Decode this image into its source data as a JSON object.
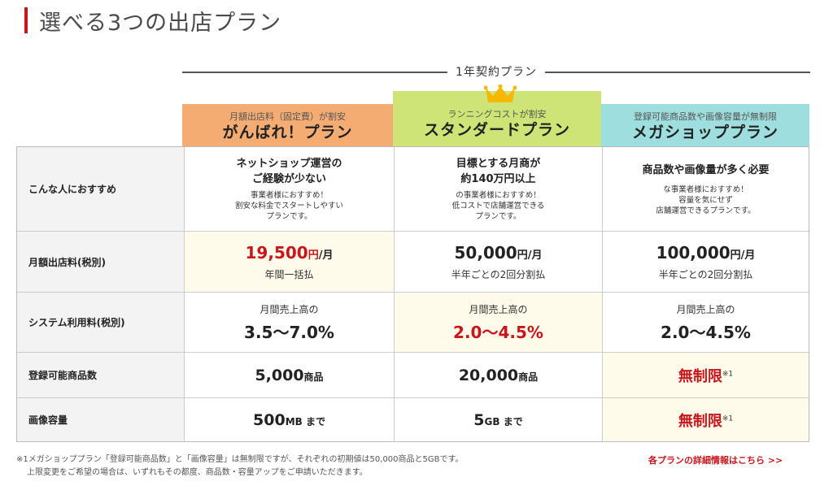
{
  "page": {
    "title": "選べる3つの出店プラン",
    "accent_color": "#c8161d"
  },
  "contract_label": "1年契約プラン",
  "crown_icon": "crown-icon",
  "plans": [
    {
      "sub": "月額出店料（固定費）が割安",
      "name": "がんばれ！プラン",
      "color": "#f5ac72"
    },
    {
      "sub": "ランニングコストが割安",
      "name": "スタンダードプラン",
      "color": "#cfe476"
    },
    {
      "sub": "登録可能商品数や画像容量が無制限",
      "name": "メガショッププラン",
      "color": "#9fdede"
    }
  ],
  "rows": {
    "recommend": {
      "label": "こんな人におすすめ",
      "cells": [
        {
          "title1": "ネットショップ運営の",
          "title2": "ご経験が少ない",
          "text1": "事業者様におすすめ！",
          "text2": "割安な料金でスタートしやすい",
          "text3": "プランです。"
        },
        {
          "title1": "目標とする月商が",
          "title2": "約140万円以上",
          "text1": "の事業者様におすすめ！",
          "text2": "低コストで店舗運営できる",
          "text3": "プランです。"
        },
        {
          "title1": "商品数や画像量が多く必要",
          "title2": "",
          "text1": "な事業者様におすすめ！",
          "text2": "容量を気にせず",
          "text3": "店舗運営できるプランです。"
        }
      ]
    },
    "monthly": {
      "label": "月額出店料(税別)",
      "cells": [
        {
          "amount": "19,500",
          "yen": "円",
          "per": "/月",
          "note": "年間一括払"
        },
        {
          "amount": "50,000",
          "yen": "円",
          "per": "/月",
          "note": "半年ごとの2回分割払"
        },
        {
          "amount": "100,000",
          "yen": "円",
          "per": "/月",
          "note": "半年ごとの2回分割払"
        }
      ]
    },
    "system": {
      "label": "システム利用料(税別)",
      "cells": [
        {
          "caption": "月間売上高の",
          "rate": "3.5〜7.0%"
        },
        {
          "caption": "月間売上高の",
          "rate": "2.0〜4.5%"
        },
        {
          "caption": "月間売上高の",
          "rate": "2.0〜4.5%"
        }
      ]
    },
    "items": {
      "label": "登録可能商品数",
      "cells": [
        {
          "value": "5,000",
          "unit": "商品"
        },
        {
          "value": "20,000",
          "unit": "商品"
        },
        {
          "value": "無制限",
          "note": "※1"
        }
      ]
    },
    "storage": {
      "label": "画像容量",
      "cells": [
        {
          "value": "500",
          "unit": "MB まで"
        },
        {
          "value": "5",
          "unit": "GB まで"
        },
        {
          "value": "無制限",
          "note": "※1"
        }
      ]
    }
  },
  "footnote": {
    "line1": "※1メガショッププラン「登録可能商品数」と「画像容量」は無制限ですが、それぞれの初期値は50,000商品と5GBです。",
    "line2": "上限変更をご希望の場合は、いずれもその都度、商品数・容量アップをご申請いただきます。"
  },
  "detail_link": "各プランの詳細情報はこちら >>"
}
